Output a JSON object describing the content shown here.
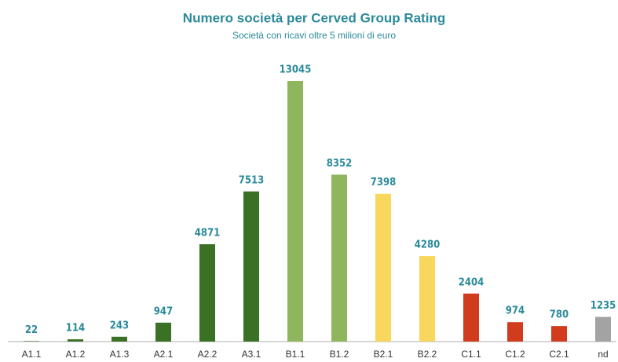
{
  "chart_data": {
    "type": "bar",
    "title": "Numero società per Cerved Group Rating",
    "subtitle": "Società con ricavi oltre 5 milioni di euro",
    "categories": [
      "A1.1",
      "A1.2",
      "A1.3",
      "A2.1",
      "A2.2",
      "A3.1",
      "B1.1",
      "B1.2",
      "B2.1",
      "B2.2",
      "C1.1",
      "C1.2",
      "C2.1",
      "nd"
    ],
    "values": [
      22,
      114,
      243,
      947,
      4871,
      7513,
      13045,
      8352,
      7398,
      4280,
      2404,
      974,
      780,
      1235
    ],
    "colors": [
      "#3b7125",
      "#3b7125",
      "#3b7125",
      "#3b7125",
      "#3b7125",
      "#3b7125",
      "#8fb65d",
      "#8fb65d",
      "#f9d75c",
      "#f9d75c",
      "#d23c1e",
      "#d23c1e",
      "#d23c1e",
      "#a3a3a3"
    ]
  }
}
